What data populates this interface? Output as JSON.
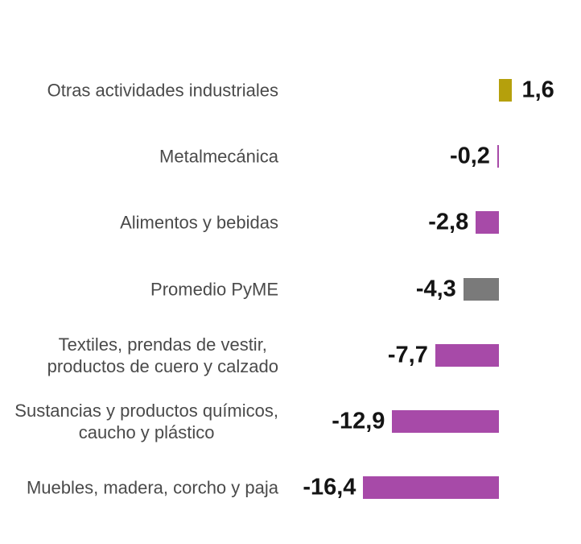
{
  "chart_data": {
    "type": "bar",
    "orientation": "horizontal",
    "title": "",
    "xlabel": "",
    "ylabel": "",
    "legend": "none",
    "gridlines": false,
    "axis": {
      "baseline_value": 0,
      "xlim": [
        -18,
        3
      ],
      "axis_line_visible": false
    },
    "decimal_separator": ",",
    "categories": [
      "Otras actividades industriales",
      "Metalmecánica",
      "Alimentos y bebidas",
      "Promedio PyME",
      "Textiles, prendas de vestir, productos de cuero y calzado",
      "Sustancias y productos químicos, caucho y plástico",
      "Muebles, madera, corcho y paja"
    ],
    "values": [
      1.6,
      -0.2,
      -2.8,
      -4.3,
      -7.7,
      -12.9,
      -16.4
    ],
    "rows": [
      {
        "label_lines": [
          "Otras actividades industriales"
        ],
        "value": 1.6,
        "value_label": "1,6",
        "color": "#b5a00c"
      },
      {
        "label_lines": [
          "Metalmecánica"
        ],
        "value": -0.2,
        "value_label": "-0,2",
        "color": "#a74aa8"
      },
      {
        "label_lines": [
          "Alimentos y bebidas"
        ],
        "value": -2.8,
        "value_label": "-2,8",
        "color": "#a74aa8"
      },
      {
        "label_lines": [
          "Promedio PyME"
        ],
        "value": -4.3,
        "value_label": "-4,3",
        "color": "#7a7a7a"
      },
      {
        "label_lines": [
          "Textiles, prendas de vestir,",
          "productos de cuero y calzado"
        ],
        "value": -7.7,
        "value_label": "-7,7",
        "color": "#a74aa8"
      },
      {
        "label_lines": [
          "Sustancias y productos químicos,",
          "caucho y plástico"
        ],
        "value": -12.9,
        "value_label": "-12,9",
        "color": "#a74aa8"
      },
      {
        "label_lines": [
          "Muebles, madera, corcho y paja"
        ],
        "value": -16.4,
        "value_label": "-16,4",
        "color": "#a74aa8"
      }
    ],
    "colors": {
      "positive_bar": "#b5a00c",
      "sector_bar": "#a74aa8",
      "average_bar": "#7a7a7a",
      "value_text": "#141414",
      "category_text": "#4a4a4a",
      "background": "#ffffff"
    }
  }
}
